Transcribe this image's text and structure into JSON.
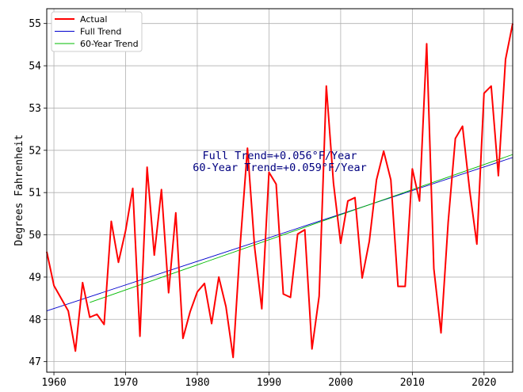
{
  "chart_data": {
    "type": "line",
    "title": "",
    "xlabel": "",
    "ylabel": "Degrees Fahrenheit",
    "xlim": [
      1959,
      2024
    ],
    "ylim": [
      46.75,
      55.35
    ],
    "xticks": [
      1960,
      1970,
      1980,
      1990,
      2000,
      2010,
      2020
    ],
    "yticks": [
      47,
      48,
      49,
      50,
      51,
      52,
      53,
      54,
      55
    ],
    "grid": true,
    "legend_position": "top-left",
    "annotations": [
      "Full Trend=+0.056°F/Year",
      "60-Year Trend=+0.059°F/Year"
    ],
    "series": [
      {
        "name": "Actual",
        "color": "#ff0000",
        "x": [
          1959,
          1960,
          1961,
          1962,
          1963,
          1964,
          1965,
          1966,
          1967,
          1968,
          1969,
          1970,
          1971,
          1972,
          1973,
          1974,
          1975,
          1976,
          1977,
          1978,
          1979,
          1980,
          1981,
          1982,
          1983,
          1984,
          1985,
          1986,
          1987,
          1988,
          1989,
          1990,
          1991,
          1992,
          1993,
          1994,
          1995,
          1996,
          1997,
          1998,
          1999,
          2000,
          2001,
          2002,
          2003,
          2004,
          2005,
          2006,
          2007,
          2008,
          2009,
          2010,
          2011,
          2012,
          2013,
          2014,
          2015,
          2016,
          2017,
          2018,
          2019,
          2020,
          2021,
          2022,
          2023,
          2024
        ],
        "values": [
          49.6,
          48.8,
          48.5,
          48.2,
          47.25,
          48.87,
          48.05,
          48.12,
          47.88,
          50.32,
          49.35,
          50.1,
          51.1,
          47.6,
          51.6,
          49.52,
          51.07,
          48.63,
          50.52,
          47.55,
          48.18,
          48.65,
          48.85,
          47.9,
          49.0,
          48.3,
          47.1,
          49.8,
          52.05,
          49.7,
          48.25,
          51.48,
          51.2,
          48.6,
          48.52,
          50.02,
          50.12,
          47.3,
          48.55,
          53.52,
          51.22,
          49.8,
          50.8,
          50.88,
          48.98,
          49.85,
          51.3,
          51.98,
          51.3,
          48.78,
          48.78,
          51.56,
          50.8,
          54.52,
          49.2,
          47.68,
          50.3,
          52.28,
          52.57,
          51.05,
          49.78,
          53.35,
          53.52,
          51.4,
          54.15,
          55.0
        ]
      },
      {
        "name": "Full Trend",
        "color": "#0000cd",
        "x": [
          1959,
          2024
        ],
        "values": [
          48.2,
          51.83
        ]
      },
      {
        "name": "60-Year Trend",
        "color": "#00bb00",
        "x": [
          1965,
          2024
        ],
        "values": [
          48.4,
          51.9
        ]
      }
    ]
  }
}
